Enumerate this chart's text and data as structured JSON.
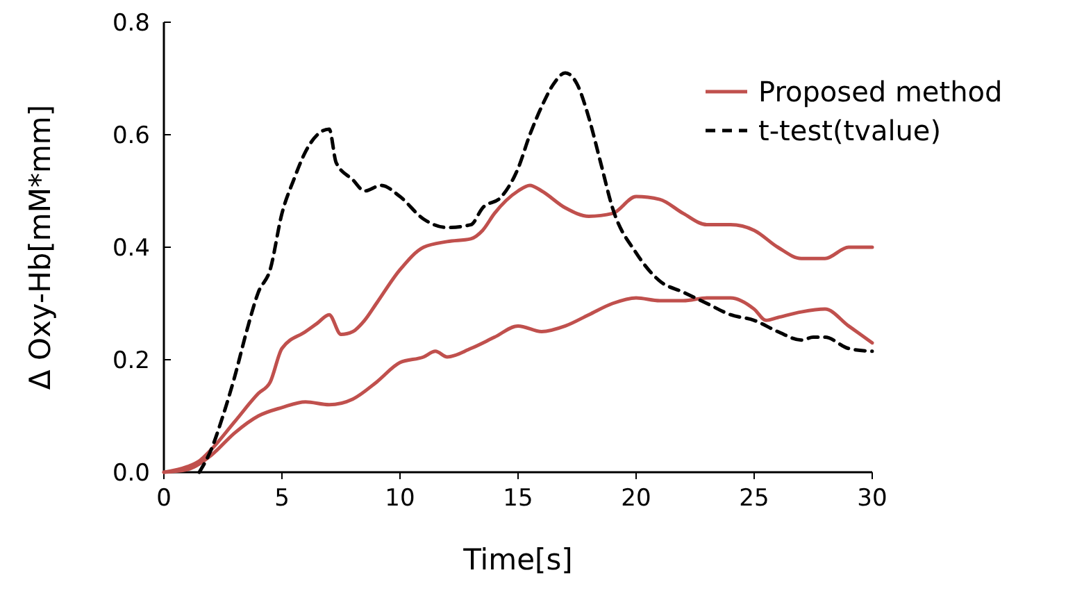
{
  "chart_data": {
    "type": "line",
    "xlabel": "Time[s]",
    "ylabel": "Δ Oxy-Hb[mM*mm]",
    "xlim": [
      0,
      30
    ],
    "xticks": [
      0,
      5,
      10,
      15,
      20,
      25,
      30
    ],
    "ylim": [
      0,
      0.8
    ],
    "yticks": [
      {
        "value": 0,
        "label": "0.0"
      },
      {
        "value": 0.2,
        "label": "0.2"
      },
      {
        "value": 0.4,
        "label": "0.4"
      },
      {
        "value": 0.6,
        "label": "0.6"
      },
      {
        "value": 0.8,
        "label": "0.8"
      }
    ],
    "grid": false,
    "legend": "top right",
    "marker": "none",
    "series": [
      {
        "name": "Proposed method",
        "color": "#c0504d",
        "line_style": "solid",
        "x": [
          0,
          1,
          1.5,
          2,
          3,
          4,
          4.5,
          5,
          6,
          6.5,
          7,
          7.5,
          8,
          8.5,
          9,
          10,
          11,
          12,
          13,
          13.5,
          14,
          15,
          15.5,
          16,
          17,
          18,
          19,
          20,
          21,
          22,
          23,
          24,
          25,
          26,
          27,
          28,
          29,
          30
        ],
        "values": [
          0,
          0.01,
          0.02,
          0.04,
          0.09,
          0.14,
          0.16,
          0.22,
          0.25,
          0.265,
          0.28,
          0.245,
          0.25,
          0.27,
          0.3,
          0.36,
          0.4,
          0.41,
          0.415,
          0.43,
          0.46,
          0.5,
          0.51,
          0.5,
          0.47,
          0.455,
          0.46,
          0.49,
          0.485,
          0.46,
          0.44,
          0.44,
          0.43,
          0.4,
          0.38,
          0.38,
          0.4,
          0.4
        ]
      },
      {
        "color": "#c0504d",
        "line_style": "solid",
        "x": [
          0,
          1,
          2,
          3,
          4,
          5,
          6,
          7,
          8,
          9,
          10,
          11,
          11.5,
          12,
          13,
          14,
          15,
          16,
          17,
          18,
          19,
          20,
          21,
          22,
          23,
          24,
          25,
          25.5,
          26,
          27,
          28,
          29,
          30
        ],
        "values": [
          0,
          0.005,
          0.03,
          0.07,
          0.1,
          0.115,
          0.125,
          0.12,
          0.13,
          0.16,
          0.195,
          0.205,
          0.215,
          0.205,
          0.22,
          0.24,
          0.26,
          0.25,
          0.26,
          0.28,
          0.3,
          0.31,
          0.305,
          0.305,
          0.31,
          0.31,
          0.29,
          0.27,
          0.275,
          0.285,
          0.29,
          0.26,
          0.23
        ]
      },
      {
        "name": "t-test(tvalue)",
        "color": "#000000",
        "line_style": "dashed",
        "x": [
          1.5,
          2,
          2.5,
          3,
          3.5,
          4,
          4.5,
          5,
          5.5,
          6,
          6.5,
          7,
          7.3,
          8,
          8.5,
          9.2,
          10,
          11,
          12,
          13,
          13.5,
          14.3,
          15,
          15.5,
          16,
          16.5,
          17,
          17.5,
          18,
          18.5,
          19,
          20,
          21,
          22,
          23,
          24,
          25,
          26,
          27,
          27.5,
          28,
          29,
          30
        ],
        "values": [
          0,
          0.04,
          0.1,
          0.17,
          0.25,
          0.32,
          0.36,
          0.46,
          0.52,
          0.57,
          0.6,
          0.61,
          0.55,
          0.52,
          0.5,
          0.51,
          0.49,
          0.45,
          0.435,
          0.44,
          0.47,
          0.49,
          0.54,
          0.6,
          0.65,
          0.69,
          0.71,
          0.69,
          0.63,
          0.55,
          0.47,
          0.39,
          0.34,
          0.32,
          0.3,
          0.28,
          0.27,
          0.25,
          0.235,
          0.24,
          0.24,
          0.22,
          0.215
        ]
      }
    ]
  }
}
